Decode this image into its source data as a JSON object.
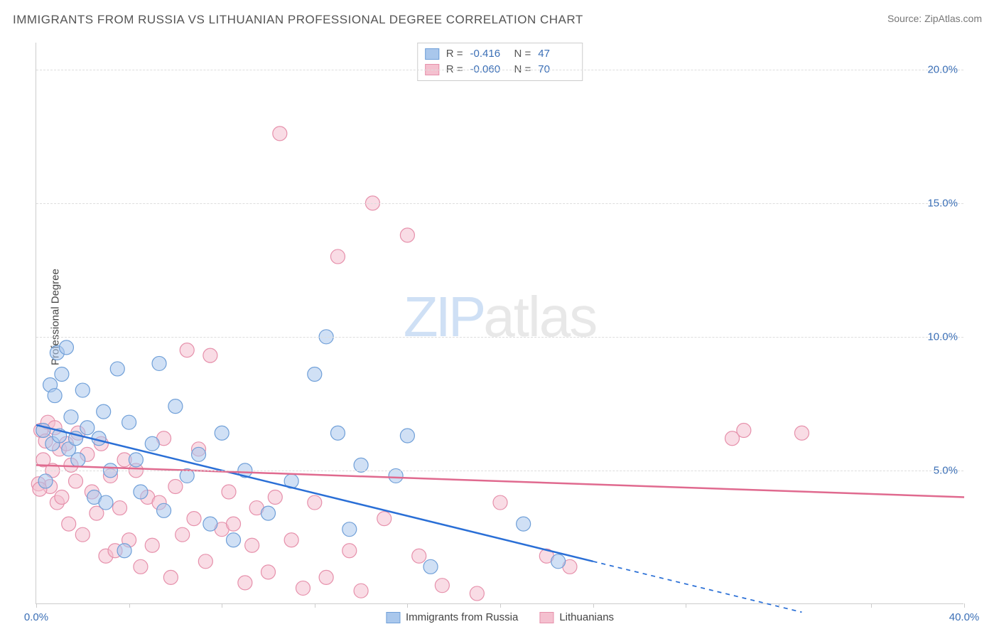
{
  "title": "IMMIGRANTS FROM RUSSIA VS LITHUANIAN PROFESSIONAL DEGREE CORRELATION CHART",
  "source": "Source: ZipAtlas.com",
  "ylabel": "Professional Degree",
  "watermark_zip": "ZIP",
  "watermark_atlas": "atlas",
  "chart": {
    "type": "scatter",
    "background_color": "#ffffff",
    "grid_color": "#dddddd",
    "axis_color": "#cccccc",
    "tick_label_color": "#3b6fb6",
    "label_fontsize": 15,
    "title_fontsize": 17,
    "xlim": [
      0,
      40
    ],
    "ylim": [
      0,
      21
    ],
    "xticks": [
      0,
      4,
      8,
      12,
      16,
      20,
      24,
      28,
      32,
      36,
      40
    ],
    "xtick_labels": {
      "0": "0.0%",
      "40": "40.0%"
    },
    "yticks": [
      5,
      10,
      15,
      20
    ],
    "ytick_labels": {
      "5": "5.0%",
      "10": "10.0%",
      "15": "15.0%",
      "20": "20.0%"
    },
    "series": [
      {
        "name": "Immigrants from Russia",
        "fill": "#a9c7ec",
        "stroke": "#6f9fd8",
        "fill_opacity": 0.55,
        "marker_r": 10,
        "R": "-0.416",
        "N": "47",
        "trend": {
          "color": "#2a6fd6",
          "width": 2.5,
          "x1": 0,
          "y1": 6.7,
          "x2": 24,
          "y2": 1.6,
          "dash_x_from": 24,
          "dash_to_x": 33,
          "dash_to_y": -0.3
        },
        "points": [
          [
            0.3,
            6.5
          ],
          [
            0.4,
            4.6
          ],
          [
            0.6,
            8.2
          ],
          [
            0.7,
            6.0
          ],
          [
            0.8,
            7.8
          ],
          [
            0.9,
            9.4
          ],
          [
            1.0,
            6.3
          ],
          [
            1.1,
            8.6
          ],
          [
            1.3,
            9.6
          ],
          [
            1.4,
            5.8
          ],
          [
            1.5,
            7.0
          ],
          [
            1.7,
            6.2
          ],
          [
            1.8,
            5.4
          ],
          [
            2.0,
            8.0
          ],
          [
            2.2,
            6.6
          ],
          [
            2.5,
            4.0
          ],
          [
            2.7,
            6.2
          ],
          [
            2.9,
            7.2
          ],
          [
            3.0,
            3.8
          ],
          [
            3.2,
            5.0
          ],
          [
            3.5,
            8.8
          ],
          [
            3.8,
            2.0
          ],
          [
            4.0,
            6.8
          ],
          [
            4.3,
            5.4
          ],
          [
            4.5,
            4.2
          ],
          [
            5.0,
            6.0
          ],
          [
            5.3,
            9.0
          ],
          [
            5.5,
            3.5
          ],
          [
            6.0,
            7.4
          ],
          [
            6.5,
            4.8
          ],
          [
            7.0,
            5.6
          ],
          [
            7.5,
            3.0
          ],
          [
            8.0,
            6.4
          ],
          [
            8.5,
            2.4
          ],
          [
            9.0,
            5.0
          ],
          [
            10.0,
            3.4
          ],
          [
            11.0,
            4.6
          ],
          [
            12.0,
            8.6
          ],
          [
            12.5,
            10.0
          ],
          [
            13.0,
            6.4
          ],
          [
            13.5,
            2.8
          ],
          [
            14.0,
            5.2
          ],
          [
            15.5,
            4.8
          ],
          [
            16.0,
            6.3
          ],
          [
            17.0,
            1.4
          ],
          [
            21.0,
            3.0
          ],
          [
            22.5,
            1.6
          ]
        ]
      },
      {
        "name": "Lithuanians",
        "fill": "#f4c0cf",
        "stroke": "#e690ab",
        "fill_opacity": 0.55,
        "marker_r": 10,
        "R": "-0.060",
        "N": "70",
        "trend": {
          "color": "#e06a8f",
          "width": 2.5,
          "x1": 0,
          "y1": 5.2,
          "x2": 40,
          "y2": 4.0
        },
        "points": [
          [
            0.2,
            6.5
          ],
          [
            0.3,
            5.4
          ],
          [
            0.4,
            6.1
          ],
          [
            0.5,
            6.8
          ],
          [
            0.6,
            4.4
          ],
          [
            0.7,
            5.0
          ],
          [
            0.8,
            6.6
          ],
          [
            0.9,
            3.8
          ],
          [
            1.0,
            5.8
          ],
          [
            1.1,
            4.0
          ],
          [
            1.3,
            6.0
          ],
          [
            1.4,
            3.0
          ],
          [
            1.5,
            5.2
          ],
          [
            1.7,
            4.6
          ],
          [
            1.8,
            6.4
          ],
          [
            2.0,
            2.6
          ],
          [
            2.2,
            5.6
          ],
          [
            2.4,
            4.2
          ],
          [
            2.6,
            3.4
          ],
          [
            2.8,
            6.0
          ],
          [
            3.0,
            1.8
          ],
          [
            3.2,
            4.8
          ],
          [
            3.4,
            2.0
          ],
          [
            3.6,
            3.6
          ],
          [
            3.8,
            5.4
          ],
          [
            4.0,
            2.4
          ],
          [
            4.3,
            5.0
          ],
          [
            4.5,
            1.4
          ],
          [
            4.8,
            4.0
          ],
          [
            5.0,
            2.2
          ],
          [
            5.3,
            3.8
          ],
          [
            5.5,
            6.2
          ],
          [
            5.8,
            1.0
          ],
          [
            6.0,
            4.4
          ],
          [
            6.3,
            2.6
          ],
          [
            6.5,
            9.5
          ],
          [
            6.8,
            3.2
          ],
          [
            7.0,
            5.8
          ],
          [
            7.3,
            1.6
          ],
          [
            7.5,
            9.3
          ],
          [
            8.0,
            2.8
          ],
          [
            8.3,
            4.2
          ],
          [
            8.5,
            3.0
          ],
          [
            9.0,
            0.8
          ],
          [
            9.3,
            2.2
          ],
          [
            9.5,
            3.6
          ],
          [
            10.0,
            1.2
          ],
          [
            10.3,
            4.0
          ],
          [
            10.5,
            17.6
          ],
          [
            11.0,
            2.4
          ],
          [
            11.5,
            0.6
          ],
          [
            12.0,
            3.8
          ],
          [
            12.5,
            1.0
          ],
          [
            13.0,
            13.0
          ],
          [
            13.5,
            2.0
          ],
          [
            14.0,
            0.5
          ],
          [
            14.5,
            15.0
          ],
          [
            15.0,
            3.2
          ],
          [
            16.0,
            13.8
          ],
          [
            16.5,
            1.8
          ],
          [
            17.5,
            0.7
          ],
          [
            19.0,
            0.4
          ],
          [
            20.0,
            3.8
          ],
          [
            22.0,
            1.8
          ],
          [
            23.0,
            1.4
          ],
          [
            30.0,
            6.2
          ],
          [
            30.5,
            6.5
          ],
          [
            33.0,
            6.4
          ],
          [
            0.1,
            4.5
          ],
          [
            0.15,
            4.3
          ]
        ]
      }
    ],
    "legend_stats_labels": {
      "R": "R =",
      "N": "N ="
    },
    "bottom_legend": [
      {
        "label": "Immigrants from Russia",
        "fill": "#a9c7ec",
        "stroke": "#6f9fd8"
      },
      {
        "label": "Lithuanians",
        "fill": "#f4c0cf",
        "stroke": "#e690ab"
      }
    ]
  }
}
